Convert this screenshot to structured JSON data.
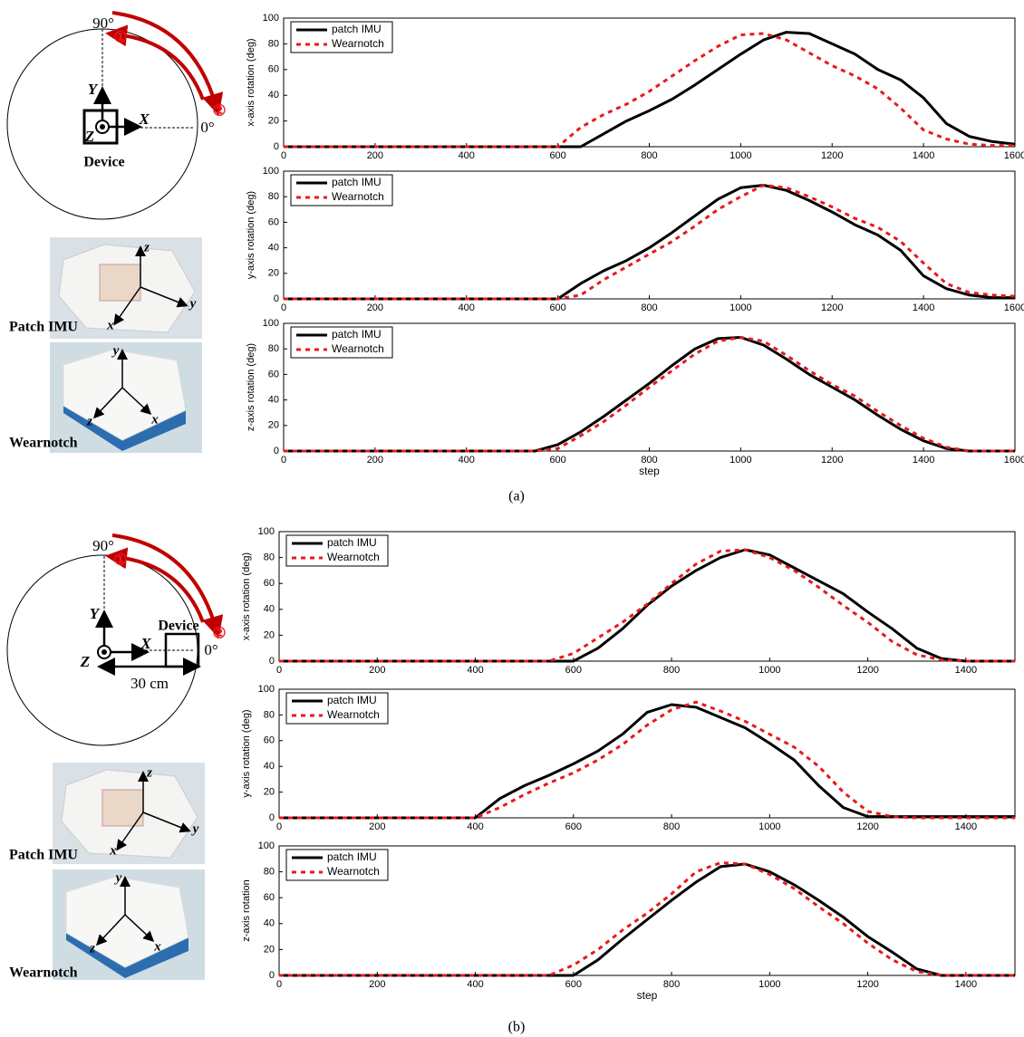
{
  "chart_data": [
    {
      "type": "line",
      "ylabel": "x-axis rotation (deg)",
      "x": [
        0,
        50,
        100,
        150,
        200,
        250,
        300,
        350,
        400,
        450,
        500,
        550,
        600,
        650,
        700,
        750,
        800,
        850,
        900,
        950,
        1000,
        1050,
        1100,
        1150,
        1200,
        1250,
        1300,
        1350,
        1400,
        1450,
        1500,
        1550,
        1600
      ],
      "xlim": [
        0,
        1600
      ],
      "xticks": [
        0,
        200,
        400,
        600,
        800,
        1000,
        1200,
        1400,
        1600
      ],
      "ylim": [
        0,
        100
      ],
      "yticks": [
        0,
        20,
        40,
        60,
        80,
        100
      ],
      "legend": "upper left",
      "series": [
        {
          "name": "patch IMU",
          "color": "#000000",
          "linestyle": "solid",
          "values": [
            0,
            0,
            0,
            0,
            0,
            0,
            0,
            0,
            0,
            0,
            0,
            0,
            0,
            0,
            10,
            20,
            28,
            37,
            48,
            60,
            72,
            83,
            89,
            88,
            80,
            72,
            60,
            52,
            38,
            18,
            8,
            4,
            2
          ]
        },
        {
          "name": "Wearnotch",
          "color": "#e8191c",
          "linestyle": "dotted",
          "values": [
            0,
            0,
            0,
            0,
            0,
            0,
            0,
            0,
            0,
            0,
            0,
            0,
            0,
            15,
            25,
            33,
            43,
            55,
            67,
            78,
            87,
            88,
            83,
            73,
            63,
            55,
            45,
            30,
            13,
            6,
            2,
            1,
            1
          ]
        }
      ]
    },
    {
      "type": "line",
      "ylabel": "y-axis rotation (deg)",
      "x": [
        0,
        50,
        100,
        150,
        200,
        250,
        300,
        350,
        400,
        450,
        500,
        550,
        600,
        650,
        700,
        750,
        800,
        850,
        900,
        950,
        1000,
        1050,
        1100,
        1150,
        1200,
        1250,
        1300,
        1350,
        1400,
        1450,
        1500,
        1550,
        1600
      ],
      "xlim": [
        0,
        1600
      ],
      "xticks": [
        0,
        200,
        400,
        600,
        800,
        1000,
        1200,
        1400,
        1600
      ],
      "ylim": [
        0,
        100
      ],
      "yticks": [
        0,
        20,
        40,
        60,
        80,
        100
      ],
      "legend": "upper left",
      "series": [
        {
          "name": "patch IMU",
          "color": "#000000",
          "linestyle": "solid",
          "values": [
            0,
            0,
            0,
            0,
            0,
            0,
            0,
            0,
            0,
            0,
            0,
            0,
            0,
            12,
            22,
            30,
            40,
            52,
            65,
            78,
            87,
            89,
            85,
            77,
            68,
            58,
            50,
            38,
            18,
            8,
            3,
            1,
            1
          ]
        },
        {
          "name": "Wearnotch",
          "color": "#e8191c",
          "linestyle": "dotted",
          "values": [
            0,
            0,
            0,
            0,
            0,
            0,
            0,
            0,
            0,
            0,
            0,
            0,
            0,
            3,
            15,
            25,
            35,
            45,
            57,
            70,
            80,
            89,
            87,
            80,
            72,
            63,
            56,
            45,
            28,
            12,
            5,
            3,
            2
          ]
        }
      ]
    },
    {
      "type": "line",
      "ylabel": "z-axis rotation (deg)",
      "xlabel": "step",
      "x": [
        0,
        50,
        100,
        150,
        200,
        250,
        300,
        350,
        400,
        450,
        500,
        550,
        600,
        650,
        700,
        750,
        800,
        850,
        900,
        950,
        1000,
        1050,
        1100,
        1150,
        1200,
        1250,
        1300,
        1350,
        1400,
        1450,
        1500,
        1550,
        1600
      ],
      "xlim": [
        0,
        1600
      ],
      "xticks": [
        0,
        200,
        400,
        600,
        800,
        1000,
        1200,
        1400,
        1600
      ],
      "ylim": [
        0,
        100
      ],
      "yticks": [
        0,
        20,
        40,
        60,
        80,
        100
      ],
      "legend": "upper left",
      "series": [
        {
          "name": "patch IMU",
          "color": "#000000",
          "linestyle": "solid",
          "values": [
            0,
            0,
            0,
            0,
            0,
            0,
            0,
            0,
            0,
            0,
            0,
            0,
            5,
            15,
            27,
            40,
            53,
            67,
            80,
            88,
            89,
            83,
            72,
            60,
            50,
            40,
            28,
            17,
            8,
            2,
            0,
            0,
            0
          ]
        },
        {
          "name": "Wearnotch",
          "color": "#e8191c",
          "linestyle": "dotted",
          "values": [
            0,
            0,
            0,
            0,
            0,
            0,
            0,
            0,
            0,
            0,
            0,
            0,
            2,
            12,
            23,
            36,
            50,
            63,
            76,
            86,
            89,
            86,
            75,
            63,
            52,
            43,
            31,
            20,
            10,
            3,
            0,
            0,
            0
          ]
        }
      ]
    },
    {
      "type": "line",
      "ylabel": "x-axis rotation (deg)",
      "x": [
        0,
        50,
        100,
        150,
        200,
        250,
        300,
        350,
        400,
        450,
        500,
        550,
        600,
        650,
        700,
        750,
        800,
        850,
        900,
        950,
        1000,
        1050,
        1100,
        1150,
        1200,
        1250,
        1300,
        1350,
        1400,
        1450,
        1500
      ],
      "xlim": [
        0,
        1500
      ],
      "xticks": [
        0,
        200,
        400,
        600,
        800,
        1000,
        1200,
        1400
      ],
      "ylim": [
        0,
        100
      ],
      "yticks": [
        0,
        20,
        40,
        60,
        80,
        100
      ],
      "legend": "upper left",
      "series": [
        {
          "name": "patch IMU",
          "color": "#000000",
          "linestyle": "solid",
          "values": [
            0,
            0,
            0,
            0,
            0,
            0,
            0,
            0,
            0,
            0,
            0,
            0,
            0,
            10,
            25,
            43,
            58,
            70,
            80,
            86,
            82,
            72,
            62,
            52,
            38,
            25,
            10,
            2,
            0,
            0,
            0
          ]
        },
        {
          "name": "Wearnotch",
          "color": "#e8191c",
          "linestyle": "dotted",
          "values": [
            0,
            0,
            0,
            0,
            0,
            0,
            0,
            0,
            0,
            0,
            0,
            0,
            6,
            18,
            30,
            44,
            60,
            75,
            85,
            86,
            80,
            70,
            57,
            43,
            30,
            15,
            5,
            1,
            0,
            0,
            0
          ]
        }
      ]
    },
    {
      "type": "line",
      "ylabel": "y-axis rotation (deg)",
      "x": [
        0,
        50,
        100,
        150,
        200,
        250,
        300,
        350,
        400,
        450,
        500,
        550,
        600,
        650,
        700,
        750,
        800,
        850,
        900,
        950,
        1000,
        1050,
        1100,
        1150,
        1200,
        1250,
        1300,
        1350,
        1400,
        1450,
        1500
      ],
      "xlim": [
        0,
        1500
      ],
      "xticks": [
        0,
        200,
        400,
        600,
        800,
        1000,
        1200,
        1400
      ],
      "ylim": [
        0,
        100
      ],
      "yticks": [
        0,
        20,
        40,
        60,
        80,
        100
      ],
      "legend": "upper left",
      "series": [
        {
          "name": "patch IMU",
          "color": "#000000",
          "linestyle": "solid",
          "values": [
            0,
            0,
            0,
            0,
            0,
            0,
            0,
            0,
            0,
            15,
            25,
            33,
            42,
            52,
            65,
            82,
            88,
            86,
            78,
            70,
            58,
            45,
            25,
            8,
            1,
            1,
            1,
            1,
            1,
            1,
            1
          ]
        },
        {
          "name": "Wearnotch",
          "color": "#e8191c",
          "linestyle": "dotted",
          "values": [
            0,
            0,
            0,
            0,
            0,
            0,
            0,
            0,
            0,
            8,
            18,
            27,
            35,
            45,
            57,
            72,
            84,
            90,
            83,
            75,
            65,
            55,
            40,
            20,
            5,
            1,
            0,
            0,
            0,
            0,
            0
          ]
        }
      ]
    },
    {
      "type": "line",
      "ylabel": "z-axis rotation",
      "xlabel": "step",
      "x": [
        0,
        50,
        100,
        150,
        200,
        250,
        300,
        350,
        400,
        450,
        500,
        550,
        600,
        650,
        700,
        750,
        800,
        850,
        900,
        950,
        1000,
        1050,
        1100,
        1150,
        1200,
        1250,
        1300,
        1350,
        1400,
        1450,
        1500
      ],
      "xlim": [
        0,
        1500
      ],
      "xticks": [
        0,
        200,
        400,
        600,
        800,
        1000,
        1200,
        1400
      ],
      "ylim": [
        0,
        100
      ],
      "yticks": [
        0,
        20,
        40,
        60,
        80,
        100
      ],
      "legend": "upper left",
      "series": [
        {
          "name": "patch IMU",
          "color": "#000000",
          "linestyle": "solid",
          "values": [
            0,
            0,
            0,
            0,
            0,
            0,
            0,
            0,
            0,
            0,
            0,
            0,
            0,
            12,
            28,
            43,
            58,
            72,
            84,
            86,
            80,
            70,
            58,
            45,
            30,
            18,
            5,
            0,
            0,
            0,
            0
          ]
        },
        {
          "name": "Wearnotch",
          "color": "#e8191c",
          "linestyle": "dotted",
          "values": [
            0,
            0,
            0,
            0,
            0,
            0,
            0,
            0,
            0,
            0,
            0,
            0,
            8,
            20,
            35,
            48,
            63,
            80,
            87,
            86,
            78,
            67,
            53,
            40,
            25,
            12,
            3,
            0,
            0,
            0,
            0
          ]
        }
      ]
    }
  ],
  "diagrams": [
    {
      "angle_90": "90°",
      "angle_0": "0°",
      "step_1": "①",
      "step_2": "②",
      "axis_x": "X",
      "axis_y": "Y",
      "axis_z": "Z",
      "device": "Device"
    },
    {
      "angle_90": "90°",
      "angle_0": "0°",
      "step_1": "①",
      "step_2": "②",
      "axis_x": "X",
      "axis_y": "Y",
      "axis_z": "Z",
      "device": "Device",
      "distance": "30 cm"
    }
  ],
  "photos": [
    {
      "patch_label": "Patch IMU",
      "patch_axes": [
        "z",
        "y",
        "x"
      ],
      "wearnotch_label": "Wearnotch",
      "wearnotch_axes": [
        "y",
        "z",
        "x"
      ]
    },
    {
      "patch_label": "Patch IMU",
      "patch_axes": [
        "z",
        "y",
        "x"
      ],
      "wearnotch_label": "Wearnotch",
      "wearnotch_axes": [
        "y",
        "z",
        "x"
      ]
    }
  ],
  "panel_labels": [
    "(a)",
    "(b)"
  ]
}
